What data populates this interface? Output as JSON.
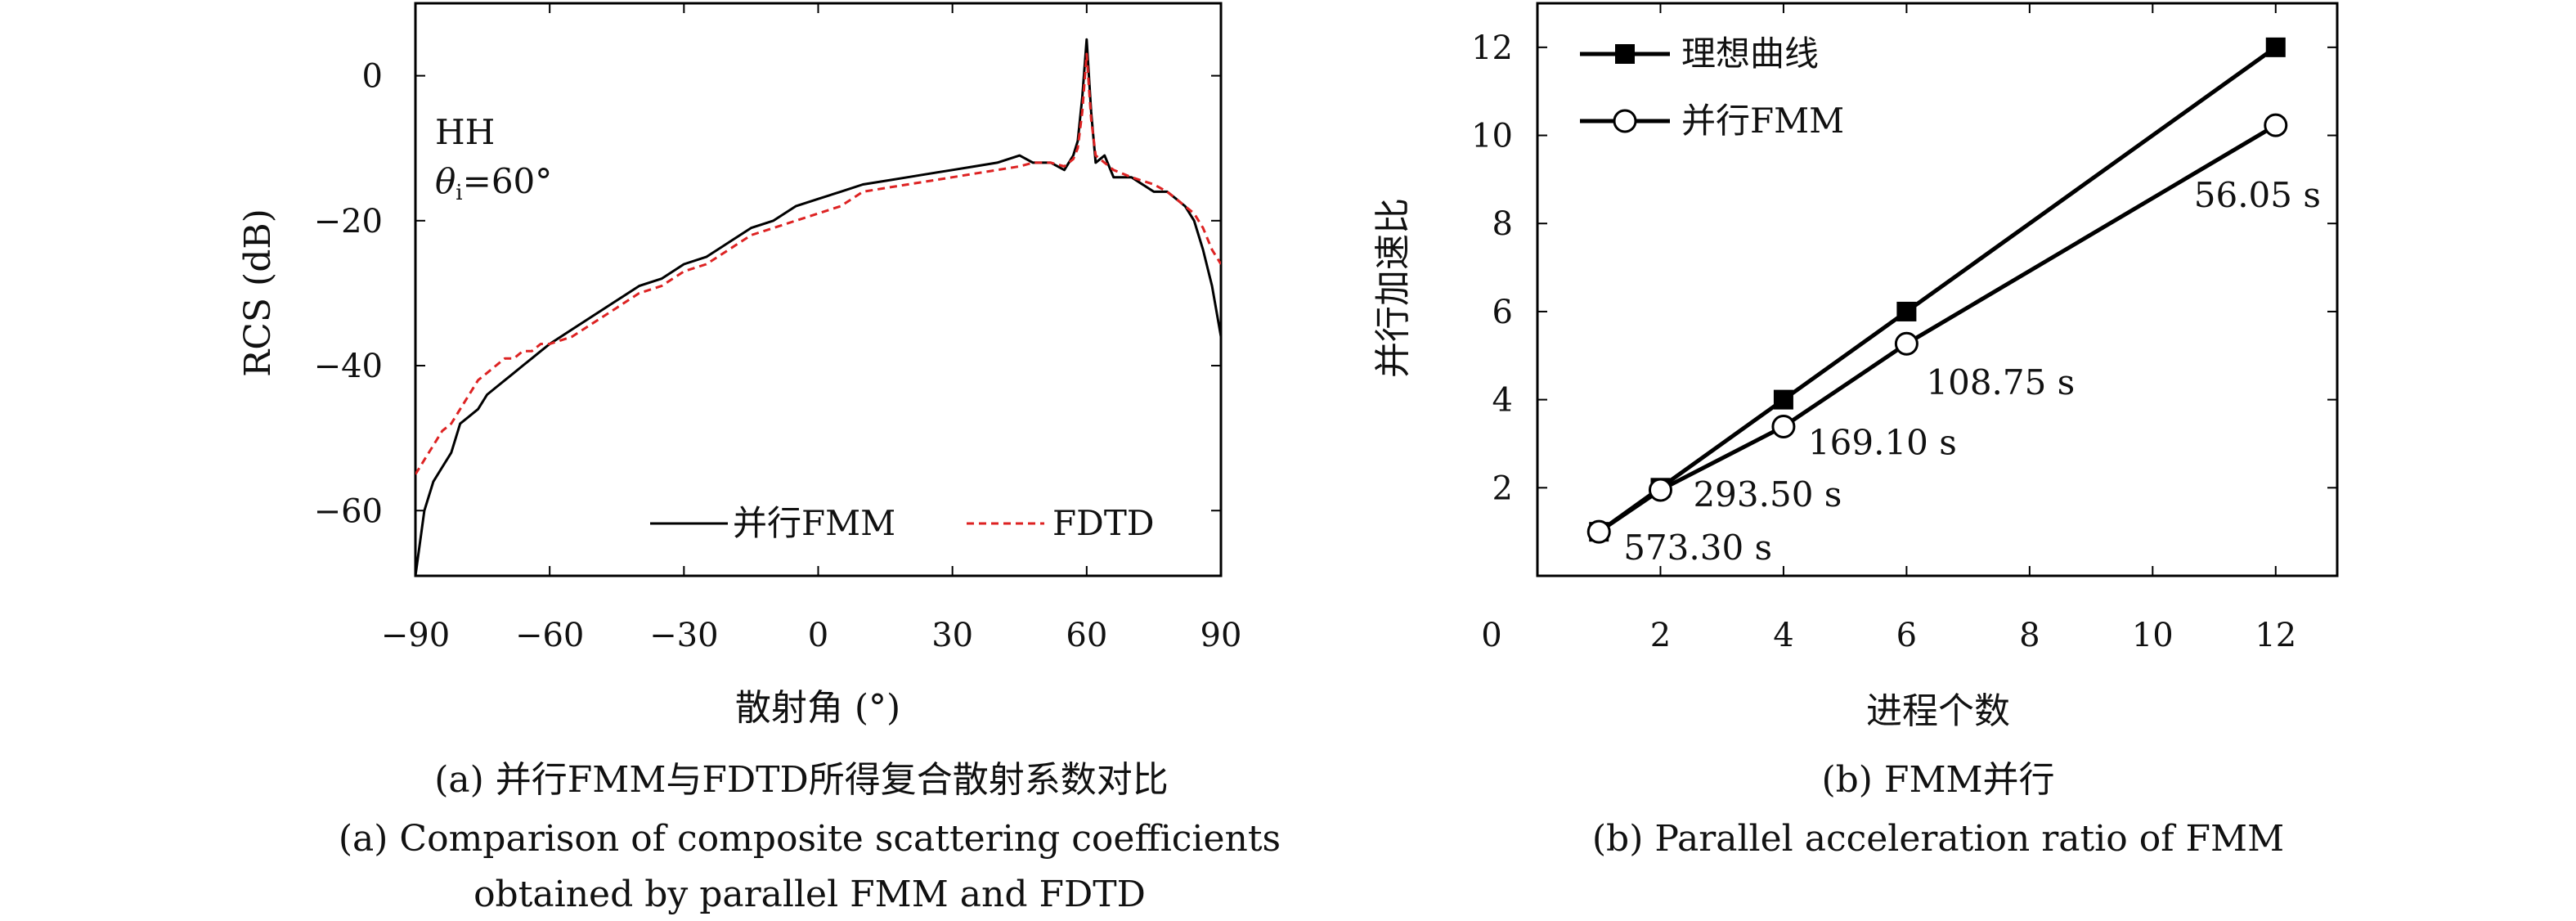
{
  "chart_data": [
    {
      "type": "line",
      "title": "",
      "caption_cn": "(a) 并行FMM与FDTD所得复合散射系数对比",
      "caption_en_1": "(a) Comparison of composite scattering coefficients",
      "caption_en_2": "obtained by parallel FMM and FDTD",
      "xlabel": "散射角 (°)",
      "ylabel": "RCS (dB)",
      "xlim": [
        -90,
        90
      ],
      "ylim": [
        -69,
        10
      ],
      "xticks": [
        "−90",
        "−60",
        "−30",
        "0",
        "30",
        "60",
        "90"
      ],
      "xtick_values": [
        -90,
        -60,
        -30,
        0,
        30,
        60,
        90
      ],
      "yticks": [
        "0",
        "−20",
        "−40",
        "−60"
      ],
      "ytick_values": [
        0,
        -20,
        -40,
        -60
      ],
      "annotation_pol": "HH",
      "annotation_theta": "θ",
      "annotation_theta_sub": "i",
      "annotation_theta_val": "=60°",
      "legend_position": "bottom-right",
      "series": [
        {
          "name": "并行FMM",
          "color": "#000000",
          "style": "solid",
          "x": [
            -90,
            -88,
            -86,
            -84,
            -82,
            -80,
            -78,
            -76,
            -74,
            -72,
            -70,
            -68,
            -66,
            -64,
            -62,
            -60,
            -55,
            -50,
            -45,
            -40,
            -35,
            -30,
            -25,
            -20,
            -15,
            -10,
            -5,
            0,
            5,
            10,
            15,
            20,
            25,
            30,
            35,
            40,
            45,
            48,
            52,
            55,
            57,
            58,
            59,
            60,
            61,
            62,
            64,
            66,
            70,
            75,
            78,
            80,
            82,
            84,
            86,
            88,
            90
          ],
          "y": [
            -69,
            -60,
            -56,
            -54,
            -52,
            -48,
            -47,
            -46,
            -44,
            -43,
            -42,
            -41,
            -40,
            -39,
            -38,
            -37,
            -35,
            -33,
            -31,
            -29,
            -28,
            -26,
            -25,
            -23,
            -21,
            -20,
            -18,
            -17,
            -16,
            -15,
            -14.5,
            -14,
            -13.5,
            -13,
            -12.5,
            -12,
            -11,
            -12,
            -12,
            -13,
            -11,
            -9,
            -3,
            5,
            -5,
            -12,
            -11,
            -14,
            -14,
            -16,
            -16,
            -17,
            -18,
            -20,
            -24,
            -29,
            -36
          ]
        },
        {
          "name": "FDTD",
          "color": "#dd2222",
          "style": "dashed",
          "x": [
            -90,
            -88,
            -86,
            -84,
            -82,
            -80,
            -78,
            -76,
            -74,
            -72,
            -70,
            -68,
            -66,
            -64,
            -62,
            -60,
            -55,
            -50,
            -45,
            -40,
            -35,
            -30,
            -25,
            -20,
            -15,
            -10,
            -5,
            0,
            5,
            10,
            15,
            20,
            25,
            30,
            35,
            40,
            45,
            48,
            52,
            55,
            57,
            58,
            59,
            60,
            61,
            62,
            64,
            66,
            70,
            75,
            78,
            80,
            82,
            84,
            86,
            88,
            90
          ],
          "y": [
            -55,
            -53,
            -51,
            -49,
            -48,
            -46,
            -44,
            -42,
            -41,
            -40,
            -39,
            -39,
            -38,
            -38,
            -37,
            -37,
            -36,
            -34,
            -32,
            -30,
            -29,
            -27,
            -26,
            -24,
            -22,
            -21,
            -20,
            -19,
            -18,
            -16,
            -15.5,
            -15,
            -14.5,
            -14,
            -13.5,
            -13,
            -12.5,
            -12,
            -12,
            -12.5,
            -11.5,
            -10,
            -5,
            3,
            -6,
            -11,
            -12,
            -13,
            -14,
            -15,
            -16,
            -17,
            -18,
            -19,
            -21,
            -24,
            -26
          ]
        }
      ]
    },
    {
      "type": "line",
      "title": "",
      "caption_cn": "(b) FMM并行",
      "caption_en": "(b) Parallel acceleration ratio of FMM",
      "xlabel": "进程个数",
      "ylabel": "并行加速比",
      "xlim": [
        0,
        13
      ],
      "ylim": [
        0,
        13
      ],
      "xticks": [
        "0",
        "2",
        "4",
        "6",
        "8",
        "10",
        "12"
      ],
      "xtick_values": [
        0,
        2,
        4,
        6,
        8,
        10,
        12
      ],
      "yticks": [
        "2",
        "4",
        "6",
        "8",
        "10",
        "12"
      ],
      "ytick_values": [
        2,
        4,
        6,
        8,
        10,
        12
      ],
      "legend_position": "top-left",
      "series": [
        {
          "name": "理想曲线",
          "marker": "filled-square",
          "x": [
            1,
            2,
            4,
            6,
            12
          ],
          "y": [
            1,
            2,
            4,
            6,
            12
          ]
        },
        {
          "name": "并行FMM",
          "marker": "open-circle",
          "x": [
            1,
            2,
            4,
            6,
            12
          ],
          "y": [
            1,
            1.95,
            3.39,
            5.27,
            10.23
          ]
        }
      ],
      "point_labels": [
        {
          "text": "573.30 s",
          "x": 1,
          "y": 1
        },
        {
          "text": "293.50 s",
          "x": 2,
          "y": 1.95
        },
        {
          "text": "169.10 s",
          "x": 4,
          "y": 3.39
        },
        {
          "text": "108.75 s",
          "x": 6,
          "y": 5.27
        },
        {
          "text": "56.05 s",
          "x": 12,
          "y": 10.23
        }
      ]
    }
  ]
}
